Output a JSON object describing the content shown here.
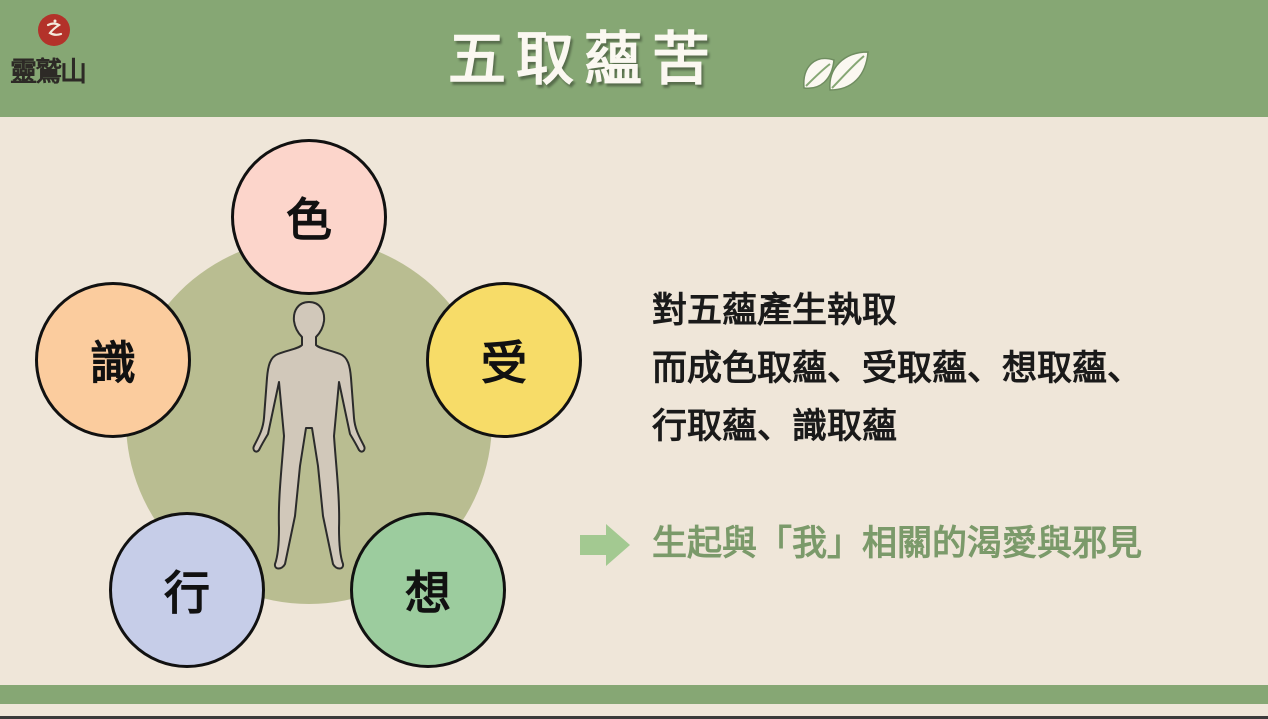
{
  "header": {
    "logo_text": "靈鷲山",
    "title": "五取蘊苦"
  },
  "aggregates": {
    "color": "色",
    "feeling": "受",
    "perception": "想",
    "formation": "行",
    "consciousness": "識"
  },
  "description": {
    "line1": "對五蘊產生執取",
    "line2": "而成色取蘊、受取蘊、想取蘊、",
    "line3": "行取蘊、識取蘊"
  },
  "result": {
    "text": "生起與「我」相關的渴愛與邪見"
  },
  "colors": {
    "header_green": "#86a774",
    "background": "#efe6d9",
    "big_circle": "#b9bd91",
    "color_node": "#fcd5cb",
    "feeling_node": "#f7dc68",
    "perception_node": "#9ccc9e",
    "formation_node": "#c6cde8",
    "consciousness_node": "#fbcc9e",
    "result_text": "#7b9a6a",
    "arrow": "#a3c991"
  },
  "icons": {
    "logo_seal": "red-seal-icon",
    "title_decoration": "leaf-icon",
    "center_figure": "human-figure-icon",
    "pointer": "right-arrow-icon"
  }
}
